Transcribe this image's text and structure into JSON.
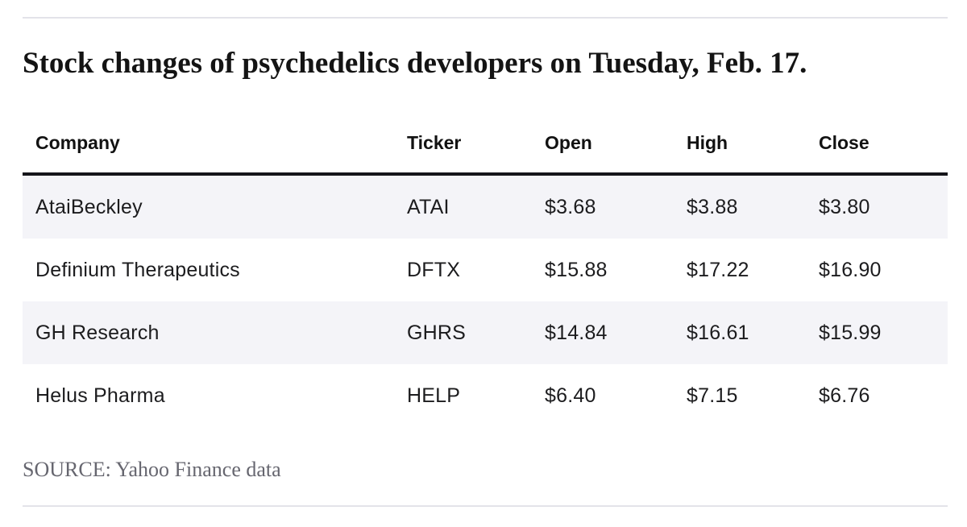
{
  "title": "Stock changes of psychedelics developers on Tuesday, Feb. 17.",
  "source_note": "SOURCE: Yahoo Finance data",
  "colors": {
    "row_stripe": "#f4f4f8",
    "header_rule": "#15151a",
    "hairline": "#e3e3e9",
    "source_text": "#66666f"
  },
  "chart_data": {
    "type": "table",
    "title": "Stock changes of psychedelics developers on Tuesday, Feb. 17.",
    "columns": [
      "Company",
      "Ticker",
      "Open",
      "High",
      "Close"
    ],
    "rows": [
      [
        "AtaiBeckley",
        "ATAI",
        "$3.68",
        "$3.88",
        "$3.80"
      ],
      [
        "Definium Therapeutics",
        "DFTX",
        "$15.88",
        "$17.22",
        "$16.90"
      ],
      [
        "GH Research",
        "GHRS",
        "$14.84",
        "$16.61",
        "$15.99"
      ],
      [
        "Helus Pharma",
        "HELP",
        "$6.40",
        "$7.15",
        "$6.76"
      ]
    ],
    "layout": {
      "striped_rows": [
        0,
        2
      ],
      "header_rule": true,
      "source": "SOURCE: Yahoo Finance data"
    }
  }
}
